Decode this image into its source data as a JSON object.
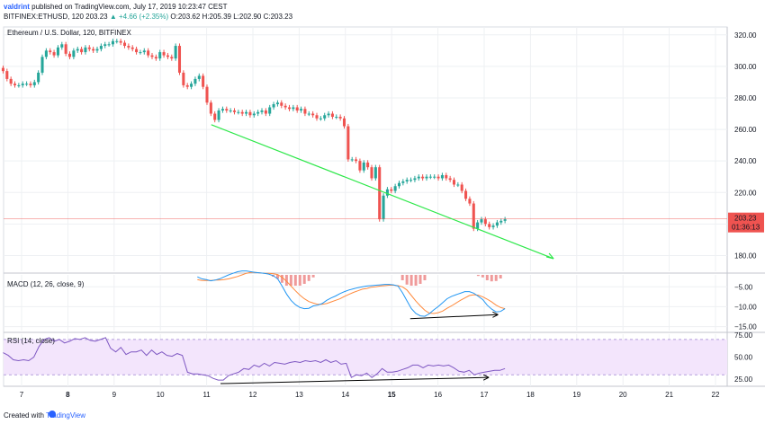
{
  "header": {
    "user": "valdrint",
    "published": "published on TradingView.com, July 17, 2019 10:23:47 CEST",
    "symbol_line_1": "BITFINEX:ETHUSD, 120",
    "last": "203.23",
    "change": "▲ +4.66 (+2.35%)",
    "ohlc": "O:203.62 H:205.39 L:202.90 C:203.23"
  },
  "footer": {
    "prefix": "Created with",
    "brand": "TradingView"
  },
  "colors": {
    "up": "#26a69a",
    "down": "#ef5350",
    "trend": "#2ee84a",
    "macd": "#2196f3",
    "signal": "#ff8a3d",
    "rsi": "#7e57c2",
    "rsi_band": "#f3e5fc",
    "price_line": "#ef5350"
  },
  "chart_data": [
    {
      "type": "candlestick",
      "title": "Ethereum / U.S. Dollar, 120, BITFINEX",
      "ylim": [
        170,
        325
      ],
      "y_ticks": [
        180,
        200,
        220,
        240,
        260,
        280,
        300,
        320
      ],
      "last_price_label": "203.23",
      "countdown_label": "01:36:13",
      "x_ticks": [
        "7",
        "8",
        "9",
        "10",
        "11",
        "12",
        "13",
        "14",
        "15",
        "16",
        "17",
        "18",
        "19",
        "20",
        "21",
        "22"
      ],
      "x_major_ticks": [
        "8",
        "15"
      ],
      "trendline": {
        "start": {
          "x": 11.1,
          "y": 263
        },
        "end": {
          "x": 18.5,
          "y": 178
        }
      },
      "close": [
        297,
        292,
        289,
        288,
        288,
        289,
        289,
        288,
        290,
        296,
        306,
        310,
        309,
        307,
        312,
        314,
        308,
        306,
        310,
        311,
        309,
        312,
        311,
        310,
        311,
        313,
        314,
        314,
        316,
        316,
        315,
        313,
        312,
        311,
        309,
        309,
        310,
        307,
        306,
        305,
        309,
        307,
        306,
        305,
        313,
        296,
        288,
        287,
        289,
        292,
        294,
        287,
        277,
        270,
        266,
        272,
        273,
        272,
        272,
        271,
        271,
        270,
        271,
        269,
        270,
        271,
        272,
        270,
        274,
        276,
        277,
        275,
        274,
        273,
        274,
        272,
        273,
        270,
        270,
        269,
        267,
        267,
        269,
        270,
        268,
        268,
        267,
        262,
        241,
        241,
        240,
        234,
        239,
        236,
        229,
        236,
        203,
        218,
        222,
        221,
        224,
        226,
        227,
        228,
        228,
        229,
        230,
        229,
        230,
        230,
        230,
        229,
        231,
        229,
        228,
        225,
        225,
        221,
        216,
        213,
        197,
        201,
        203,
        200,
        198,
        199,
        201,
        202,
        203
      ]
    },
    {
      "type": "line",
      "title": "MACD (12, 26, close, 9)",
      "ylim": [
        -16,
        -2
      ],
      "y_ticks": [
        -5,
        -10,
        -15
      ],
      "series": [
        {
          "name": "MACD",
          "values": [
            -2.5,
            -3,
            -3.2,
            -3.5,
            -3.3,
            -3,
            -2.5,
            -2,
            -1.6,
            -1.2,
            -1,
            -1,
            -1.2,
            -1.4,
            -1.5,
            -1.6,
            -1.8,
            -2.2,
            -3,
            -4.8,
            -6.8,
            -8.4,
            -9.5,
            -10.2,
            -10.5,
            -10.4,
            -9.8,
            -9.6,
            -9.2,
            -8.4,
            -7.8,
            -7.3,
            -6.7,
            -6.2,
            -5.8,
            -5.5,
            -5.2,
            -5,
            -4.8,
            -4.7,
            -4.6,
            -4.5,
            -4.4,
            -4.4,
            -4.5,
            -4.8,
            -6.5,
            -8.5,
            -10.5,
            -11.7,
            -12.3,
            -12.4,
            -11.8,
            -10.8,
            -10,
            -9,
            -8,
            -7.4,
            -7,
            -6.6,
            -6.2,
            -6.2,
            -6.6,
            -7.4,
            -8.2,
            -9.6,
            -10.6,
            -11.3,
            -11.2,
            -10.5
          ]
        },
        {
          "name": "Signal",
          "values": [
            -3.2,
            -3.4,
            -3.4,
            -3.4,
            -3.3,
            -3.3,
            -3.2,
            -3,
            -2.7,
            -2.4,
            -2,
            -1.6,
            -1.4,
            -1.4,
            -1.5,
            -1.6,
            -1.6,
            -1.7,
            -1.9,
            -2.6,
            -3.6,
            -4.8,
            -6,
            -7.1,
            -8,
            -8.7,
            -9.1,
            -9.4,
            -9.4,
            -9.2,
            -8.8,
            -8.4,
            -8,
            -7.4,
            -6.9,
            -6.4,
            -6,
            -5.6,
            -5.4,
            -5.1,
            -5,
            -4.8,
            -4.7,
            -4.6,
            -4.6,
            -4.7,
            -5,
            -5.8,
            -7.2,
            -8.6,
            -9.8,
            -10.9,
            -11.6,
            -11.7,
            -11.5,
            -11.1,
            -10.4,
            -9.8,
            -9.1,
            -8.4,
            -7.8,
            -7.2,
            -7,
            -7.1,
            -7.5,
            -8.1,
            -8.8,
            -9.6,
            -10.2,
            -10.5
          ]
        }
      ],
      "divergence_line": {
        "start": {
          "x": 15.4,
          "y": -13
        },
        "end": {
          "x": 17.3,
          "y": -12
        }
      }
    },
    {
      "type": "line",
      "title": "RSI (14, close)",
      "ylim": [
        17,
        76
      ],
      "y_ticks": [
        75,
        50,
        25
      ],
      "band": [
        30,
        70
      ],
      "series": [
        {
          "name": "RSI",
          "values": [
            55,
            52,
            47,
            46,
            47,
            46,
            50,
            62,
            70,
            72,
            68,
            70,
            66,
            68,
            71,
            70,
            72,
            69,
            68,
            70,
            72,
            60,
            56,
            61,
            53,
            56,
            56,
            58,
            52,
            58,
            53,
            56,
            52,
            51,
            54,
            52,
            33,
            31,
            31,
            30,
            29,
            26,
            24,
            24,
            29,
            31,
            33,
            37,
            36,
            41,
            39,
            43,
            40,
            44,
            43,
            42,
            44,
            45,
            44,
            46,
            45,
            46,
            44,
            47,
            44,
            46,
            42,
            43,
            27,
            30,
            29,
            32,
            27,
            31,
            37,
            33,
            33,
            34,
            36,
            38,
            41,
            41,
            38,
            41,
            40,
            41,
            40,
            41,
            38,
            34,
            33,
            35,
            30,
            32,
            33,
            34,
            35,
            35,
            37
          ]
        }
      ],
      "divergence_line": {
        "start": {
          "x": 11.3,
          "y": 20
        },
        "end": {
          "x": 17.1,
          "y": 27
        }
      }
    }
  ]
}
